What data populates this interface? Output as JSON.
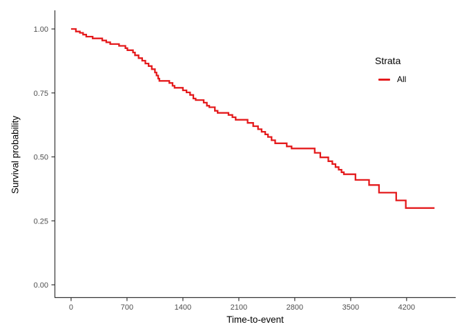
{
  "figure": {
    "background": "#FFFFFF"
  },
  "colors": {
    "curve": "#E41A1C",
    "axis_line": "#333333",
    "tick_label": "#4D4D4D",
    "axis_title": "#000000",
    "background": "#FFFFFF"
  },
  "chart_data": {
    "type": "line",
    "subtype": "kaplan_meier_step",
    "title": "",
    "xlabel": "Time-to-event",
    "ylabel": "Survival probability",
    "grid": false,
    "xlim": [
      -207,
      4815
    ],
    "ylim": [
      -0.0485,
      1.0728
    ],
    "x_ticks": {
      "values": [
        0,
        700,
        1400,
        2100,
        2800,
        3500,
        4200
      ],
      "labels": [
        "0",
        "700",
        "1400",
        "2100",
        "2800",
        "3500",
        "4200"
      ]
    },
    "y_ticks": {
      "values": [
        0,
        0.25,
        0.5,
        0.75,
        1
      ],
      "labels": [
        "0.00",
        "0.25",
        "0.50",
        "0.75",
        "1.00"
      ]
    },
    "legend": {
      "title": "Strata",
      "position": "right",
      "entries": [
        {
          "label": "All",
          "color": "#E41A1C"
        }
      ]
    },
    "series": [
      {
        "name": "All",
        "color": "#E41A1C",
        "stroke_width": 2.3,
        "step_points": [
          [
            0,
            1.0
          ],
          [
            60,
            0.99
          ],
          [
            110,
            0.985
          ],
          [
            150,
            0.978
          ],
          [
            190,
            0.97
          ],
          [
            270,
            0.963
          ],
          [
            390,
            0.955
          ],
          [
            440,
            0.948
          ],
          [
            490,
            0.941
          ],
          [
            600,
            0.934
          ],
          [
            680,
            0.925
          ],
          [
            705,
            0.917
          ],
          [
            775,
            0.908
          ],
          [
            800,
            0.897
          ],
          [
            845,
            0.886
          ],
          [
            890,
            0.876
          ],
          [
            930,
            0.865
          ],
          [
            970,
            0.855
          ],
          [
            1010,
            0.843
          ],
          [
            1050,
            0.83
          ],
          [
            1070,
            0.818
          ],
          [
            1090,
            0.806
          ],
          [
            1105,
            0.797
          ],
          [
            1230,
            0.789
          ],
          [
            1270,
            0.778
          ],
          [
            1295,
            0.77
          ],
          [
            1400,
            0.76
          ],
          [
            1445,
            0.752
          ],
          [
            1490,
            0.742
          ],
          [
            1530,
            0.728
          ],
          [
            1560,
            0.722
          ],
          [
            1660,
            0.712
          ],
          [
            1700,
            0.7
          ],
          [
            1730,
            0.694
          ],
          [
            1800,
            0.68
          ],
          [
            1835,
            0.672
          ],
          [
            1970,
            0.664
          ],
          [
            2020,
            0.655
          ],
          [
            2060,
            0.645
          ],
          [
            2210,
            0.633
          ],
          [
            2280,
            0.62
          ],
          [
            2340,
            0.608
          ],
          [
            2385,
            0.598
          ],
          [
            2430,
            0.588
          ],
          [
            2465,
            0.578
          ],
          [
            2510,
            0.565
          ],
          [
            2555,
            0.553
          ],
          [
            2700,
            0.541
          ],
          [
            2760,
            0.533
          ],
          [
            3050,
            0.516
          ],
          [
            3120,
            0.498
          ],
          [
            3220,
            0.483
          ],
          [
            3270,
            0.472
          ],
          [
            3310,
            0.46
          ],
          [
            3350,
            0.45
          ],
          [
            3385,
            0.44
          ],
          [
            3415,
            0.432
          ],
          [
            3560,
            0.41
          ],
          [
            3730,
            0.39
          ],
          [
            3855,
            0.36
          ],
          [
            4070,
            0.33
          ],
          [
            4190,
            0.3
          ],
          [
            4550,
            0.3
          ]
        ]
      }
    ]
  }
}
